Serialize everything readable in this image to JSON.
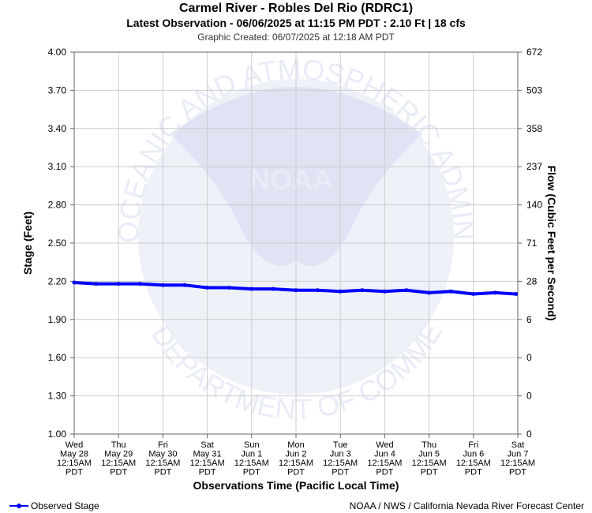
{
  "header": {
    "title": "Carmel River - Robles Del Rio (RDRC1)",
    "subtitle": "Latest Observation - 06/06/2025 at 11:15 PM PDT : 2.10 Ft | 18 cfs",
    "created": "Graphic Created: 06/07/2025 at 12:18 AM PDT"
  },
  "watermark": {
    "logo_text": "NOAA",
    "ring_text": "NATIONAL OCEANIC AND ATMOSPHERIC ADMINISTRATION",
    "bottom_text": "U.S. DEPARTMENT OF COMMERCE"
  },
  "legend": {
    "label": "Observed Stage",
    "color": "#0000ff"
  },
  "credit": "NOAA / NWS / California Nevada River Forecast Center",
  "chart_data": {
    "type": "line",
    "xlabel": "Observations Time (Pacific Local Time)",
    "ylabel": "Stage (Feet)",
    "y2label": "Flow (Cubic Feet per Second)",
    "ylim": [
      1.0,
      4.0
    ],
    "grid": true,
    "legend_position": "bottom-left",
    "y_ticks": [
      "4.00",
      "3.70",
      "3.40",
      "3.10",
      "2.80",
      "2.50",
      "2.20",
      "1.90",
      "1.60",
      "1.30",
      "1.00"
    ],
    "y2_ticks": [
      "672",
      "503",
      "358",
      "237",
      "140",
      "71",
      "28",
      "6",
      "0",
      "0",
      "0"
    ],
    "x_ticks": [
      [
        "Wed",
        "May 28",
        "12:15AM",
        "PDT"
      ],
      [
        "Thu",
        "May 29",
        "12:15AM",
        "PDT"
      ],
      [
        "Fri",
        "May 30",
        "12:15AM",
        "PDT"
      ],
      [
        "Sat",
        "May 31",
        "12:15AM",
        "PDT"
      ],
      [
        "Sun",
        "Jun 1",
        "12:15AM",
        "PDT"
      ],
      [
        "Mon",
        "Jun 2",
        "12:15AM",
        "PDT"
      ],
      [
        "Tue",
        "Jun 3",
        "12:15AM",
        "PDT"
      ],
      [
        "Wed",
        "Jun 4",
        "12:15AM",
        "PDT"
      ],
      [
        "Thu",
        "Jun 5",
        "12:15AM",
        "PDT"
      ],
      [
        "Fri",
        "Jun 6",
        "12:15AM",
        "PDT"
      ],
      [
        "Sat",
        "Jun 7",
        "12:15AM",
        "PDT"
      ]
    ],
    "x_range": [
      "2025-05-28 00:15",
      "2025-06-07 00:15"
    ],
    "series": [
      {
        "name": "Observed Stage",
        "color": "#0000ff",
        "x": [
          "2025-05-28 00:15",
          "2025-05-28 12:00",
          "2025-05-29 00:15",
          "2025-05-29 12:00",
          "2025-05-30 00:15",
          "2025-05-30 12:00",
          "2025-05-31 00:15",
          "2025-05-31 12:00",
          "2025-06-01 00:15",
          "2025-06-01 12:00",
          "2025-06-02 00:15",
          "2025-06-02 12:00",
          "2025-06-03 00:15",
          "2025-06-03 12:00",
          "2025-06-04 00:15",
          "2025-06-04 12:00",
          "2025-06-05 00:15",
          "2025-06-05 12:00",
          "2025-06-06 00:15",
          "2025-06-06 12:00",
          "2025-06-06 23:15"
        ],
        "y": [
          2.19,
          2.18,
          2.18,
          2.18,
          2.17,
          2.17,
          2.15,
          2.15,
          2.14,
          2.14,
          2.13,
          2.13,
          2.12,
          2.13,
          2.12,
          2.13,
          2.11,
          2.12,
          2.1,
          2.11,
          2.1
        ]
      }
    ]
  }
}
